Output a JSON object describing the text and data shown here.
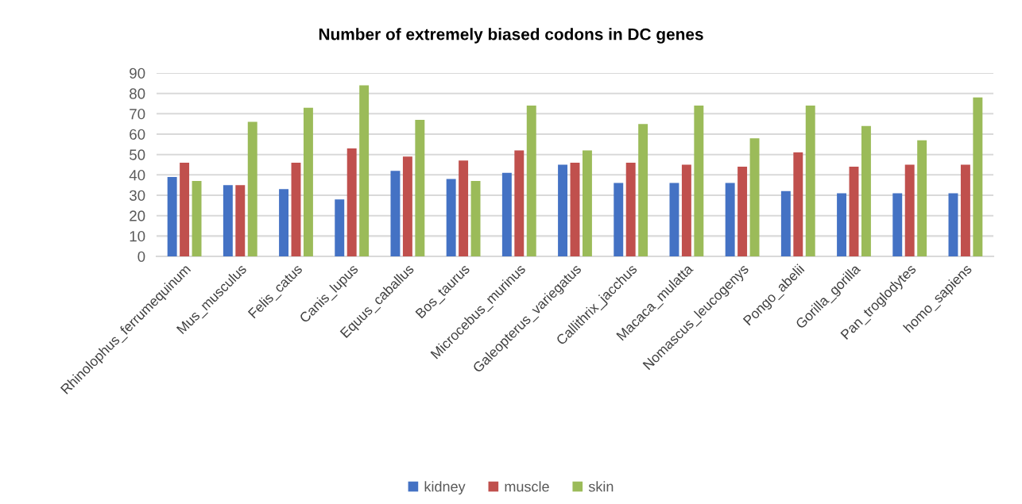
{
  "chart_data": {
    "type": "bar",
    "title": "Number of extremely biased codons in DC genes",
    "categories": [
      "Rhinolophus_ferrumequinum",
      "Mus_musculus",
      "Felis_catus",
      "Canis_lupus",
      "Equus_caballus",
      "Bos_taurus",
      "Microcebus_murinus",
      "Galeopterus_variegatus",
      "Callithrix_jacchus",
      "Macaca_mulatta",
      "Nomascus_leucogenys",
      "Pongo_abelii",
      "Gorilla_gorilla",
      "Pan_troglodytes",
      "homo_sapiens"
    ],
    "series": [
      {
        "name": "kidney",
        "color": "#4472c4",
        "values": [
          39,
          35,
          33,
          28,
          42,
          38,
          41,
          45,
          36,
          36,
          36,
          32,
          31,
          31,
          31
        ]
      },
      {
        "name": "muscle",
        "color": "#c0504d",
        "values": [
          46,
          35,
          46,
          53,
          49,
          47,
          52,
          46,
          46,
          45,
          44,
          51,
          44,
          45,
          45
        ]
      },
      {
        "name": "skin",
        "color": "#9bbb59",
        "values": [
          37,
          66,
          73,
          84,
          67,
          37,
          74,
          52,
          65,
          74,
          58,
          74,
          64,
          57,
          78
        ]
      }
    ],
    "ylim": [
      0,
      90
    ],
    "yticks": [
      0,
      10,
      20,
      30,
      40,
      50,
      60,
      70,
      80,
      90
    ],
    "grid": "y",
    "legend": "bottom"
  }
}
